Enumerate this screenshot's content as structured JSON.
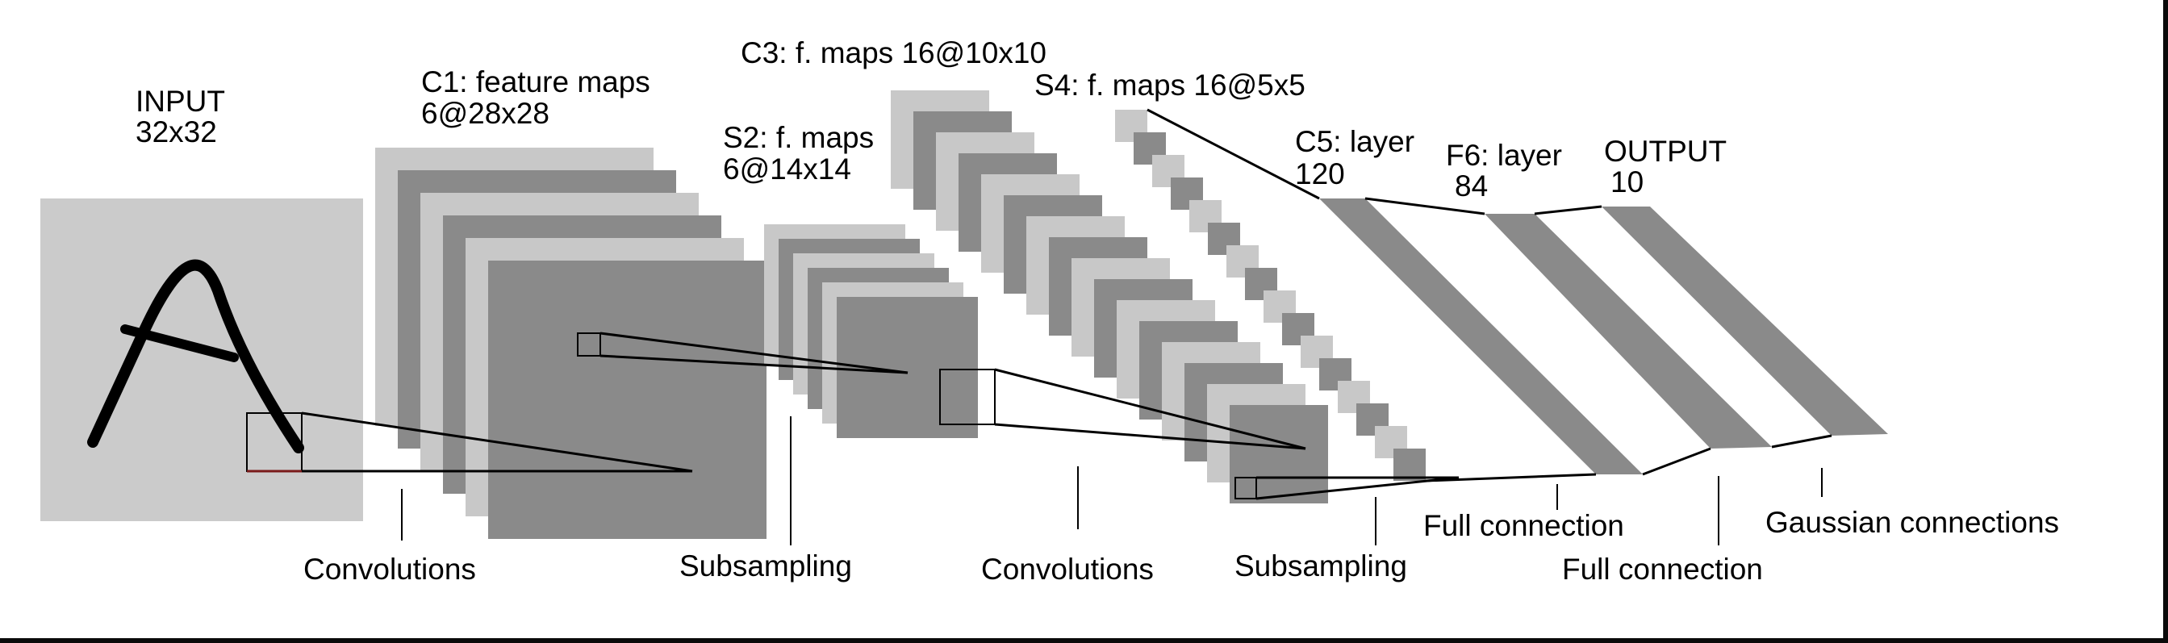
{
  "colors": {
    "light": "#c8c8c8",
    "dark": "#8a8a8a",
    "input_bg": "#cbcbcb",
    "line": "#000000",
    "stroke_char": "#000000",
    "receptive_underline": "#7a1a1a"
  },
  "layers": {
    "input": {
      "name": "INPUT",
      "size": "32x32"
    },
    "c1": {
      "name": "C1: feature maps",
      "size": "6@28x28"
    },
    "s2": {
      "name": "S2: f. maps",
      "size": "6@14x14"
    },
    "c3": {
      "name": "C3: f. maps 16@10x10"
    },
    "s4": {
      "name": "S4: f. maps 16@5x5"
    },
    "c5": {
      "name": "C5: layer",
      "size": "120"
    },
    "f6": {
      "name": "F6: layer",
      "size": "84"
    },
    "output": {
      "name": "OUTPUT",
      "size": "10"
    }
  },
  "operations": {
    "conv1": "Convolutions",
    "subsample1": "Subsampling",
    "conv2": "Convolutions",
    "subsample2": "Subsampling",
    "full1": "Full connection",
    "full2": "Full connection",
    "gaussian": "Gaussian connections"
  }
}
